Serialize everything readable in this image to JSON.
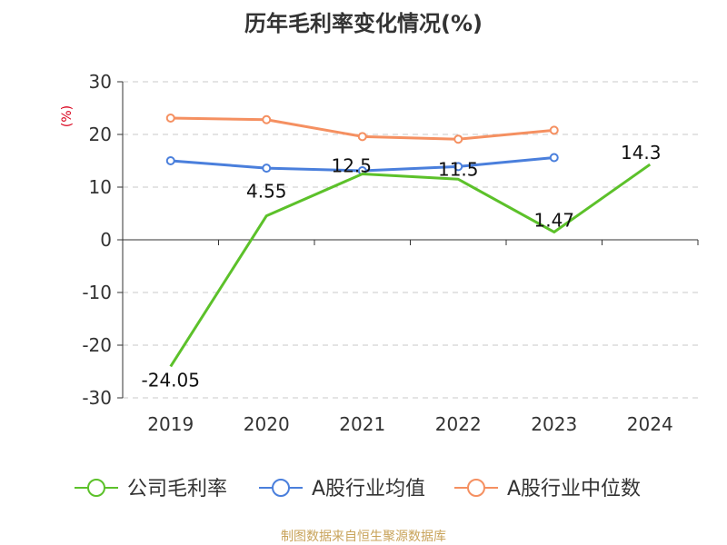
{
  "chart_data": {
    "type": "line",
    "title": "历年毛利率变化情况(%)",
    "ylabel": "(%)",
    "source": "制图数据来自恒生聚源数据库",
    "categories": [
      "2019",
      "2020",
      "2021",
      "2022",
      "2023",
      "2024"
    ],
    "ylim": [
      -30,
      30
    ],
    "yticks": [
      -30,
      -20,
      -10,
      0,
      10,
      20,
      30
    ],
    "grid": true,
    "legend_position": "bottom",
    "series": [
      {
        "name": "公司毛利率",
        "color": "#5cc12a",
        "values": [
          -24.05,
          4.55,
          12.5,
          11.5,
          1.47,
          14.3
        ],
        "labels": [
          "-24.05",
          "4.55",
          "12.5",
          "11.5",
          "1.47",
          "14.3"
        ]
      },
      {
        "name": "A股行业均值",
        "color": "#4a7fdc",
        "values": [
          15.0,
          13.6,
          13.1,
          13.9,
          15.6,
          null
        ]
      },
      {
        "name": "A股行业中位数",
        "color": "#f59061",
        "values": [
          23.1,
          22.8,
          19.6,
          19.1,
          20.8,
          null
        ]
      }
    ]
  }
}
